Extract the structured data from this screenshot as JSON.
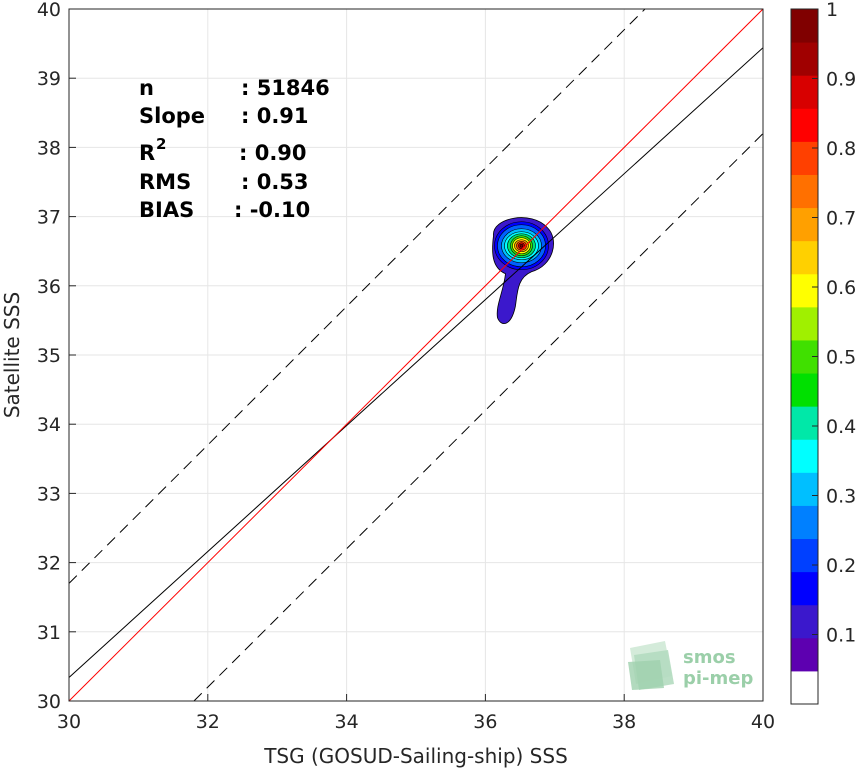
{
  "chart_data": {
    "type": "heatmap",
    "xlabel": "TSG (GOSUD-Sailing-ship) SSS",
    "ylabel": "Satellite SSS",
    "xlim": [
      30,
      40
    ],
    "ylim": [
      30,
      40
    ],
    "xticks": [
      30,
      32,
      34,
      36,
      38,
      40
    ],
    "yticks": [
      30,
      31,
      32,
      33,
      34,
      35,
      36,
      37,
      38,
      39,
      40
    ],
    "grid": true,
    "stats": {
      "n_label": "n",
      "n_value": ": 51846",
      "slope_label": "Slope",
      "slope_value": ": 0.91",
      "r2_label": "R",
      "r2_sup": "2",
      "r2_value": ": 0.90",
      "rms_label": "RMS",
      "rms_value": ": 0.53",
      "bias_label": "BIAS",
      "bias_value": ": -0.10"
    },
    "lines": {
      "one_to_one": {
        "slope": 1.0,
        "intercept": 0.0,
        "color": "#ff0000"
      },
      "regression": {
        "slope": 0.91,
        "intercept": 3.04,
        "color": "#000000"
      },
      "dashed_upper": {
        "slope": 1.0,
        "intercept": 1.7,
        "color": "#000000"
      },
      "dashed_lower": {
        "slope": 1.0,
        "intercept": -1.8,
        "color": "#000000"
      }
    },
    "density_peak": {
      "x": 36.52,
      "y": 36.55
    },
    "colorbar": {
      "min": 0,
      "max": 1,
      "ticks": [
        "0.1",
        "0.2",
        "0.3",
        "0.4",
        "0.5",
        "0.6",
        "0.7",
        "0.8",
        "0.9",
        "1"
      ],
      "colors": [
        "#ffffff",
        "#5d00b0",
        "#3b18cc",
        "#0000ff",
        "#0040ff",
        "#0080ff",
        "#00bfff",
        "#00ffff",
        "#00e8a8",
        "#00e000",
        "#40e000",
        "#a0f000",
        "#ffff00",
        "#ffd000",
        "#ffa000",
        "#ff7000",
        "#ff4000",
        "#ff0000",
        "#d80000",
        "#a00000",
        "#800000"
      ]
    }
  },
  "logo": {
    "line1": "smos",
    "line2": "pi-mep"
  }
}
